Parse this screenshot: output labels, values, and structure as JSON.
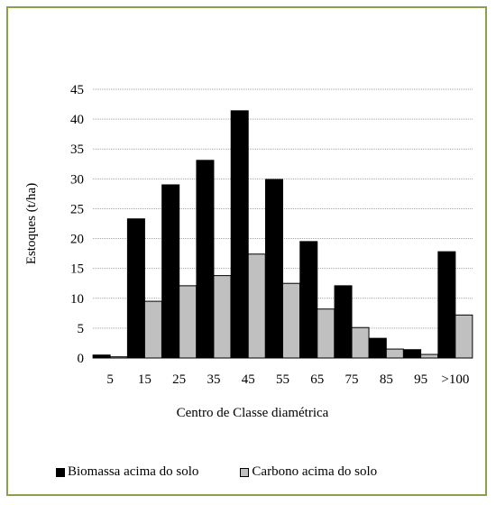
{
  "chart_data": {
    "type": "bar",
    "categories": [
      "5",
      "15",
      "25",
      "35",
      "45",
      "55",
      "65",
      "75",
      "85",
      "95",
      ">100"
    ],
    "series": [
      {
        "name": "Biomassa acima do solo",
        "color": "#000000",
        "values": [
          0.5,
          23.3,
          29.0,
          33.1,
          41.4,
          29.9,
          19.5,
          12.1,
          3.3,
          1.4,
          17.8
        ]
      },
      {
        "name": "Carbono acima do solo",
        "color": "#c0c0c0",
        "values": [
          0.2,
          9.5,
          12.1,
          13.8,
          17.4,
          12.5,
          8.2,
          5.1,
          1.5,
          0.6,
          7.2
        ]
      }
    ],
    "xlabel": "Centro de Classe diamétrica",
    "ylabel": "Estoques  (t/ha)",
    "ylim": [
      0,
      45
    ],
    "yticks": [
      0,
      5,
      10,
      15,
      20,
      25,
      30,
      35,
      40,
      45
    ],
    "grid": true,
    "legend_position": "bottom"
  }
}
